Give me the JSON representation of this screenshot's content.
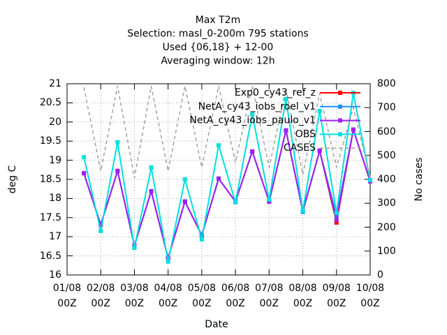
{
  "chart_data": {
    "type": "line",
    "title": [
      "Max T2m",
      "Selection: masl_0-200m    795 stations",
      "Used {06,18} + 12-00",
      "Averaging window: 12h"
    ],
    "xlabel": "Date",
    "ylabel": "deg C",
    "y2label": "No cases",
    "x": [
      "01/08 12Z",
      "02/08 00Z",
      "02/08 12Z",
      "03/08 00Z",
      "03/08 12Z",
      "04/08 00Z",
      "04/08 12Z",
      "05/08 00Z",
      "05/08 12Z",
      "06/08 00Z",
      "06/08 12Z",
      "07/08 00Z",
      "07/08 12Z",
      "08/08 00Z",
      "08/08 12Z",
      "09/08 00Z",
      "09/08 12Z",
      "10/08 00Z"
    ],
    "xlim": [
      "01/08 00Z",
      "10/08 00Z"
    ],
    "xticks": [
      "01/08 00Z",
      "02/08 00Z",
      "03/08 00Z",
      "04/08 00Z",
      "05/08 00Z",
      "06/08 00Z",
      "07/08 00Z",
      "08/08 00Z",
      "09/08 00Z",
      "10/08 00Z"
    ],
    "ylim": [
      16,
      21
    ],
    "yticks": [
      16,
      16.5,
      17,
      17.5,
      18,
      18.5,
      19,
      19.5,
      20,
      20.5,
      21
    ],
    "y2lim": [
      0,
      800
    ],
    "y2ticks": [
      0,
      100,
      200,
      300,
      400,
      500,
      600,
      700,
      800
    ],
    "grid": true,
    "legend": "upper right",
    "series": [
      {
        "name": "Exp0_cy43_ref_z",
        "color": "#ff0000",
        "marker": true,
        "values": [
          18.66,
          17.31,
          18.72,
          16.77,
          18.19,
          16.44,
          17.92,
          17.04,
          18.52,
          17.92,
          19.23,
          17.92,
          19.78,
          17.66,
          19.25,
          17.37,
          19.8,
          18.45
        ]
      },
      {
        "name": "NetA_cy43_iobs_roel_v1",
        "color": "#1e90ff",
        "marker": true,
        "values": [
          18.66,
          17.31,
          18.72,
          16.77,
          18.19,
          16.44,
          17.92,
          17.04,
          18.52,
          17.92,
          19.23,
          17.92,
          19.78,
          17.65,
          19.25,
          17.55,
          19.8,
          18.45
        ]
      },
      {
        "name": "NetA_cy43_iobs_paulo_v1",
        "color": "#a020f0",
        "marker": true,
        "values": [
          18.66,
          17.31,
          18.72,
          16.77,
          18.19,
          16.44,
          17.92,
          17.04,
          18.52,
          17.92,
          19.23,
          17.92,
          19.78,
          17.68,
          19.25,
          17.44,
          19.8,
          18.45
        ]
      },
      {
        "name": "OBS",
        "color": "#00e0e0",
        "marker": true,
        "values": [
          19.08,
          17.15,
          19.47,
          16.71,
          18.81,
          16.35,
          18.5,
          16.93,
          19.39,
          17.9,
          20.2,
          17.97,
          20.6,
          17.68,
          20.29,
          17.62,
          20.76,
          18.48
        ]
      },
      {
        "name": "CASES",
        "color": "#a0a0a0",
        "marker": false,
        "axis": "y2",
        "dashed": true,
        "values": [
          785,
          435,
          790,
          406,
          790,
          435,
          790,
          450,
          790,
          470,
          790,
          450,
          780,
          420,
          760,
          450,
          700,
          410
        ]
      }
    ]
  }
}
